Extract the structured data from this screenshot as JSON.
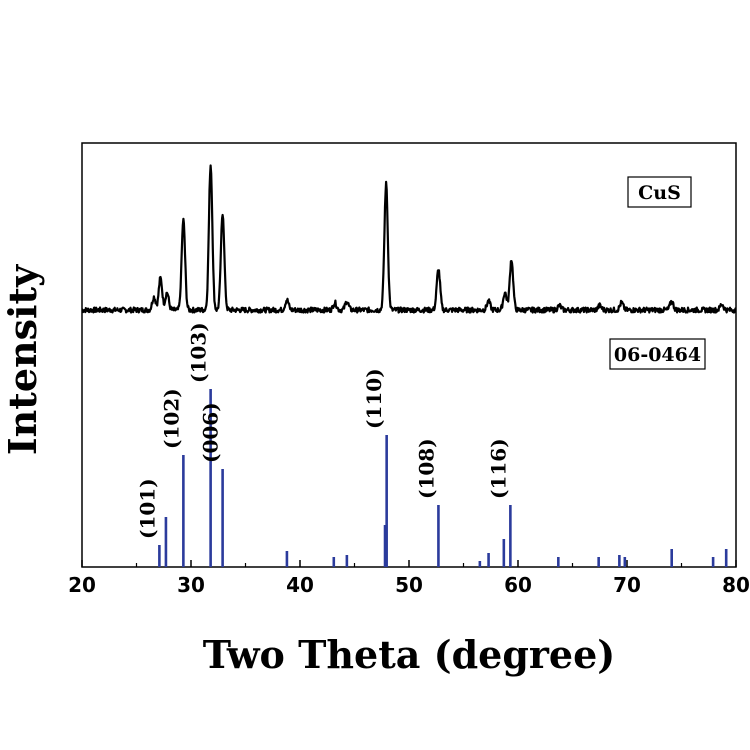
{
  "chart_data": {
    "type": "line",
    "xlabel": "Two Theta (degree)",
    "ylabel": "Intensity",
    "xlim": [
      20,
      80
    ],
    "x_ticks": [
      20,
      30,
      40,
      50,
      60,
      70,
      80
    ],
    "grid": false,
    "legend": [
      {
        "name": "CuS",
        "placement": "top-right"
      },
      {
        "name": "06-0464",
        "placement": "middle-right"
      }
    ],
    "series": [
      {
        "name": "CuS",
        "peaks": [
          {
            "x": 26.6,
            "y": 0.09
          },
          {
            "x": 27.2,
            "y": 0.22
          },
          {
            "x": 27.8,
            "y": 0.12
          },
          {
            "x": 29.3,
            "y": 0.62
          },
          {
            "x": 31.8,
            "y": 1.0
          },
          {
            "x": 32.9,
            "y": 0.67
          },
          {
            "x": 38.8,
            "y": 0.07
          },
          {
            "x": 43.2,
            "y": 0.05
          },
          {
            "x": 44.3,
            "y": 0.06
          },
          {
            "x": 47.9,
            "y": 0.87
          },
          {
            "x": 52.7,
            "y": 0.28
          },
          {
            "x": 57.3,
            "y": 0.06
          },
          {
            "x": 58.8,
            "y": 0.12
          },
          {
            "x": 59.4,
            "y": 0.35
          },
          {
            "x": 63.8,
            "y": 0.03
          },
          {
            "x": 67.5,
            "y": 0.03
          },
          {
            "x": 69.5,
            "y": 0.05
          },
          {
            "x": 74.1,
            "y": 0.06
          },
          {
            "x": 78.7,
            "y": 0.04
          }
        ]
      },
      {
        "name": "06-0464",
        "type": "stem",
        "lines": [
          {
            "x": 27.1,
            "y": 0.11
          },
          {
            "x": 27.7,
            "y": 0.25
          },
          {
            "x": 29.3,
            "y": 0.56
          },
          {
            "x": 31.8,
            "y": 0.89
          },
          {
            "x": 32.9,
            "y": 0.49
          },
          {
            "x": 38.8,
            "y": 0.08
          },
          {
            "x": 43.1,
            "y": 0.05
          },
          {
            "x": 44.3,
            "y": 0.06
          },
          {
            "x": 47.8,
            "y": 0.21
          },
          {
            "x": 47.95,
            "y": 0.66
          },
          {
            "x": 52.7,
            "y": 0.31
          },
          {
            "x": 56.5,
            "y": 0.03
          },
          {
            "x": 57.3,
            "y": 0.07
          },
          {
            "x": 58.7,
            "y": 0.14
          },
          {
            "x": 59.3,
            "y": 0.31
          },
          {
            "x": 63.7,
            "y": 0.05
          },
          {
            "x": 67.4,
            "y": 0.05
          },
          {
            "x": 69.3,
            "y": 0.06
          },
          {
            "x": 69.8,
            "y": 0.05
          },
          {
            "x": 74.1,
            "y": 0.09
          },
          {
            "x": 77.9,
            "y": 0.05
          },
          {
            "x": 79.1,
            "y": 0.09
          }
        ],
        "annotations": [
          {
            "x": 27.1,
            "text": "(101)"
          },
          {
            "x": 29.3,
            "text": "(102)"
          },
          {
            "x": 31.8,
            "text": "(103)"
          },
          {
            "x": 32.9,
            "text": "(006)"
          },
          {
            "x": 47.9,
            "text": "(110)"
          },
          {
            "x": 52.7,
            "text": "(108)"
          },
          {
            "x": 59.3,
            "text": "(116)"
          }
        ]
      }
    ]
  },
  "colors": {
    "pattern": "#000000",
    "reference": "#2b3b9c"
  }
}
